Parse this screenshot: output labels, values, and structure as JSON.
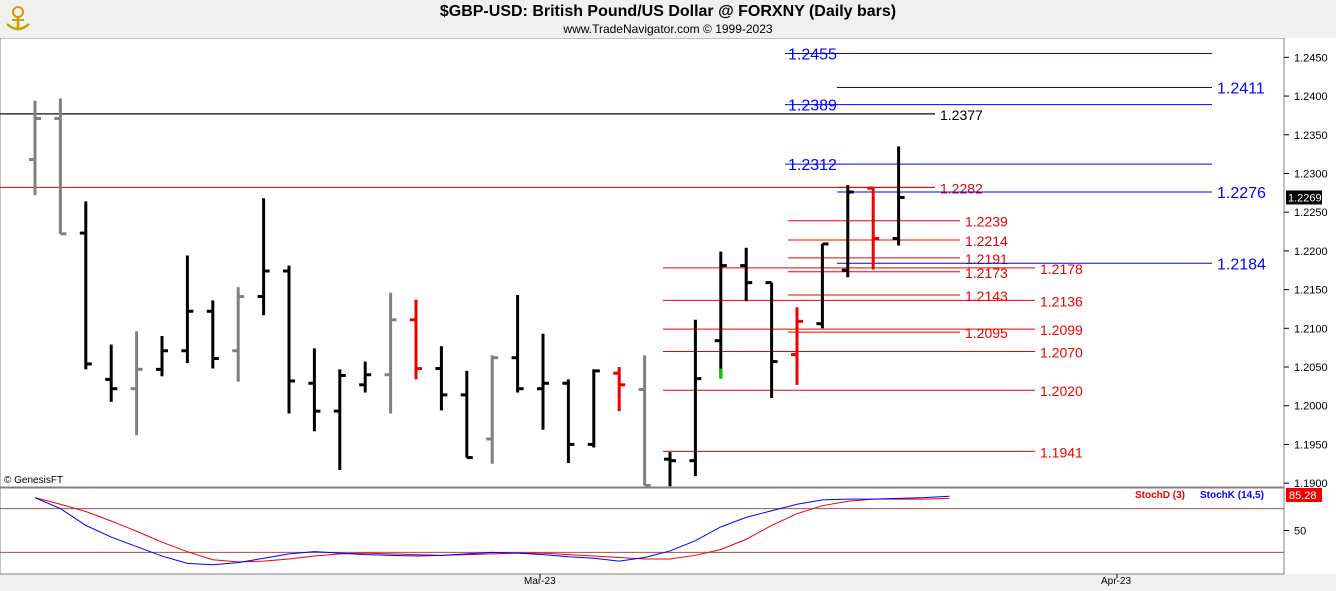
{
  "header": {
    "title": "$GBP-USD:  British Pound/US Dollar @ FORXNY  (Daily bars)",
    "subtitle": "www.TradeNavigator.com © 1999-2023",
    "logo_icon": "navigator-logo-icon"
  },
  "footer": {
    "credit": "© GenesisFT",
    "month_labels": [
      "Mar-23",
      "Apr-23"
    ]
  },
  "chart_data": [
    {
      "type": "ohlc",
      "title": "$GBP-USD:  British Pound/US Dollar @ FORXNY  (Daily bars)",
      "ylim": [
        1.1895,
        1.2475
      ],
      "y_ticks": [
        "1.1900",
        "1.1950",
        "1.2000",
        "1.2050",
        "1.2100",
        "1.2150",
        "1.2200",
        "1.2250",
        "1.2300",
        "1.2350",
        "1.2400",
        "1.2450"
      ],
      "last_price_label": "1.2269",
      "colors": {
        "up": "#000000",
        "down_highlight": "#ee0000",
        "gray": "#808080",
        "green": "#00cc00"
      },
      "bars": [
        {
          "o": 1.2318,
          "h": 1.2394,
          "l": 1.2272,
          "c": 1.2371,
          "color": "gray"
        },
        {
          "o": 1.2371,
          "h": 1.2397,
          "l": 1.2222,
          "c": 1.2222,
          "color": "gray"
        },
        {
          "o": 1.2223,
          "h": 1.2264,
          "l": 1.2047,
          "c": 1.2054,
          "color": "black"
        },
        {
          "o": 1.2034,
          "h": 1.2079,
          "l": 1.2005,
          "c": 1.2022,
          "color": "black"
        },
        {
          "o": 1.2022,
          "h": 1.2096,
          "l": 1.1962,
          "c": 1.2047,
          "color": "gray"
        },
        {
          "o": 1.2047,
          "h": 1.209,
          "l": 1.2038,
          "c": 1.2071,
          "color": "black"
        },
        {
          "o": 1.2071,
          "h": 1.2194,
          "l": 1.2055,
          "c": 1.2122,
          "color": "black"
        },
        {
          "o": 1.2122,
          "h": 1.2136,
          "l": 1.2048,
          "c": 1.2061,
          "color": "black"
        },
        {
          "o": 1.2071,
          "h": 1.2153,
          "l": 1.2031,
          "c": 1.2141,
          "color": "gray"
        },
        {
          "o": 1.2141,
          "h": 1.2268,
          "l": 1.2117,
          "c": 1.2174,
          "color": "black"
        },
        {
          "o": 1.2174,
          "h": 1.2181,
          "l": 1.199,
          "c": 1.2032,
          "color": "black"
        },
        {
          "o": 1.2029,
          "h": 1.2074,
          "l": 1.1967,
          "c": 1.1993,
          "color": "black"
        },
        {
          "o": 1.1993,
          "h": 1.2047,
          "l": 1.1917,
          "c": 1.2039,
          "color": "black"
        },
        {
          "o": 1.2027,
          "h": 1.2057,
          "l": 1.2017,
          "c": 1.204,
          "color": "black"
        },
        {
          "o": 1.204,
          "h": 1.2146,
          "l": 1.199,
          "c": 1.2111,
          "color": "gray"
        },
        {
          "o": 1.2111,
          "h": 1.2137,
          "l": 1.2034,
          "c": 1.2048,
          "color": "red"
        },
        {
          "o": 1.2048,
          "h": 1.2077,
          "l": 1.1994,
          "c": 1.2014,
          "color": "black"
        },
        {
          "o": 1.2014,
          "h": 1.2045,
          "l": 1.1933,
          "c": 1.1933,
          "color": "black"
        },
        {
          "o": 1.1957,
          "h": 1.2065,
          "l": 1.1925,
          "c": 1.2062,
          "color": "gray"
        },
        {
          "o": 1.2062,
          "h": 1.2143,
          "l": 1.2017,
          "c": 1.2022,
          "color": "black"
        },
        {
          "o": 1.2022,
          "h": 1.2093,
          "l": 1.1969,
          "c": 1.2029,
          "color": "black"
        },
        {
          "o": 1.2029,
          "h": 1.2034,
          "l": 1.1926,
          "c": 1.195,
          "color": "black"
        },
        {
          "o": 1.195,
          "h": 1.2047,
          "l": 1.1946,
          "c": 1.2045,
          "color": "black"
        },
        {
          "o": 1.2042,
          "h": 1.205,
          "l": 1.1993,
          "c": 1.2027,
          "color": "red"
        },
        {
          "o": 1.2021,
          "h": 1.2065,
          "l": 1.1897,
          "c": 1.1897,
          "color": "gray"
        },
        {
          "o": 1.1931,
          "h": 1.194,
          "l": 1.1896,
          "c": 1.1929,
          "color": "black"
        },
        {
          "o": 1.1929,
          "h": 1.2111,
          "l": 1.1909,
          "c": 1.2035,
          "color": "black"
        },
        {
          "o": 1.2084,
          "h": 1.2199,
          "l": 1.2035,
          "c": 1.2181,
          "color": "black",
          "low_color": "green"
        },
        {
          "o": 1.2181,
          "h": 1.2204,
          "l": 1.2135,
          "c": 1.2159,
          "color": "black"
        },
        {
          "o": 1.2159,
          "h": 1.2159,
          "l": 1.201,
          "c": 1.2057,
          "color": "black"
        },
        {
          "o": 1.2066,
          "h": 1.2127,
          "l": 1.2027,
          "c": 1.2109,
          "color": "red"
        },
        {
          "o": 1.2106,
          "h": 1.2209,
          "l": 1.21,
          "c": 1.2209,
          "color": "black"
        },
        {
          "o": 1.2175,
          "h": 1.2285,
          "l": 1.2166,
          "c": 1.2276,
          "color": "black"
        },
        {
          "o": 1.2281,
          "h": 1.2281,
          "l": 1.2176,
          "c": 1.2216,
          "color": "red"
        },
        {
          "o": 1.2216,
          "h": 1.2335,
          "l": 1.2207,
          "c": 1.2269,
          "color": "black"
        }
      ],
      "levels": [
        {
          "value": 1.2455,
          "label": "1.2455",
          "color": "#0000ff",
          "label_side": "left"
        },
        {
          "value": 1.2411,
          "label": "1.2411",
          "color": "#0000ff",
          "label_side": "right"
        },
        {
          "value": 1.2389,
          "label": "1.2389",
          "color": "#0000ff",
          "label_side": "left"
        },
        {
          "value": 1.2377,
          "label": "1.2377",
          "color": "#000000",
          "label_side": "right"
        },
        {
          "value": 1.2312,
          "label": "1.2312",
          "color": "#0000ff",
          "label_side": "left"
        },
        {
          "value": 1.2282,
          "label": "1.2282",
          "color": "#ee0000",
          "label_side": "right"
        },
        {
          "value": 1.2276,
          "label": "1.2276",
          "color": "#0000ff",
          "label_side": "right"
        },
        {
          "value": 1.2239,
          "label": "1.2239",
          "color": "#ee0000",
          "label_side": "right"
        },
        {
          "value": 1.2214,
          "label": "1.2214",
          "color": "#ee0000",
          "label_side": "right"
        },
        {
          "value": 1.2191,
          "label": "1.2191",
          "color": "#ee0000",
          "label_side": "right"
        },
        {
          "value": 1.2184,
          "label": "1.2184",
          "color": "#0000ff",
          "label_side": "right"
        },
        {
          "value": 1.2178,
          "label": "1.2178",
          "color": "#ee0000",
          "label_side": "right"
        },
        {
          "value": 1.2173,
          "label": "1.2173",
          "color": "#ee0000",
          "label_side": "right"
        },
        {
          "value": 1.2143,
          "label": "1.2143",
          "color": "#ee0000",
          "label_side": "right"
        },
        {
          "value": 1.2136,
          "label": "1.2136",
          "color": "#ee0000",
          "label_side": "right"
        },
        {
          "value": 1.2099,
          "label": "1.2099",
          "color": "#ee0000",
          "label_side": "right"
        },
        {
          "value": 1.2095,
          "label": "1.2095",
          "color": "#ee0000",
          "label_side": "right"
        },
        {
          "value": 1.207,
          "label": "1.2070",
          "color": "#ee0000",
          "label_side": "right"
        },
        {
          "value": 1.202,
          "label": "1.2020",
          "color": "#ee0000",
          "label_side": "right"
        },
        {
          "value": 1.1941,
          "label": "1.1941",
          "color": "#ee0000",
          "label_side": "right"
        }
      ],
      "horizontal_lines": [
        {
          "value": 1.2377,
          "color": "#000000"
        },
        {
          "value": 1.2282,
          "color": "#ee0000"
        }
      ]
    },
    {
      "type": "line",
      "ylim": [
        0,
        100
      ],
      "y_ticks": [
        "50"
      ],
      "reference_lines": [
        80,
        20
      ],
      "last_value_label": "85.28",
      "series": [
        {
          "name": "StochD (3)",
          "color": "#ee0000",
          "values": [
            95,
            86,
            76,
            63,
            49,
            34,
            21,
            10,
            7,
            8,
            11,
            15,
            18,
            19,
            18,
            17,
            16,
            17,
            18,
            19,
            19,
            17,
            15,
            13,
            11,
            11,
            16,
            24,
            38,
            57,
            73,
            84,
            90,
            93,
            93,
            93,
            94
          ]
        },
        {
          "name": "StochK (14,5)",
          "color": "#0000ff",
          "values": [
            95,
            80,
            57,
            41,
            28,
            15,
            5,
            3,
            6,
            12,
            18,
            21,
            19,
            17,
            16,
            15,
            16,
            18,
            20,
            19,
            17,
            14,
            12,
            8,
            13,
            22,
            36,
            55,
            68,
            77,
            86,
            92,
            93,
            93,
            94,
            95,
            97
          ]
        }
      ]
    }
  ]
}
